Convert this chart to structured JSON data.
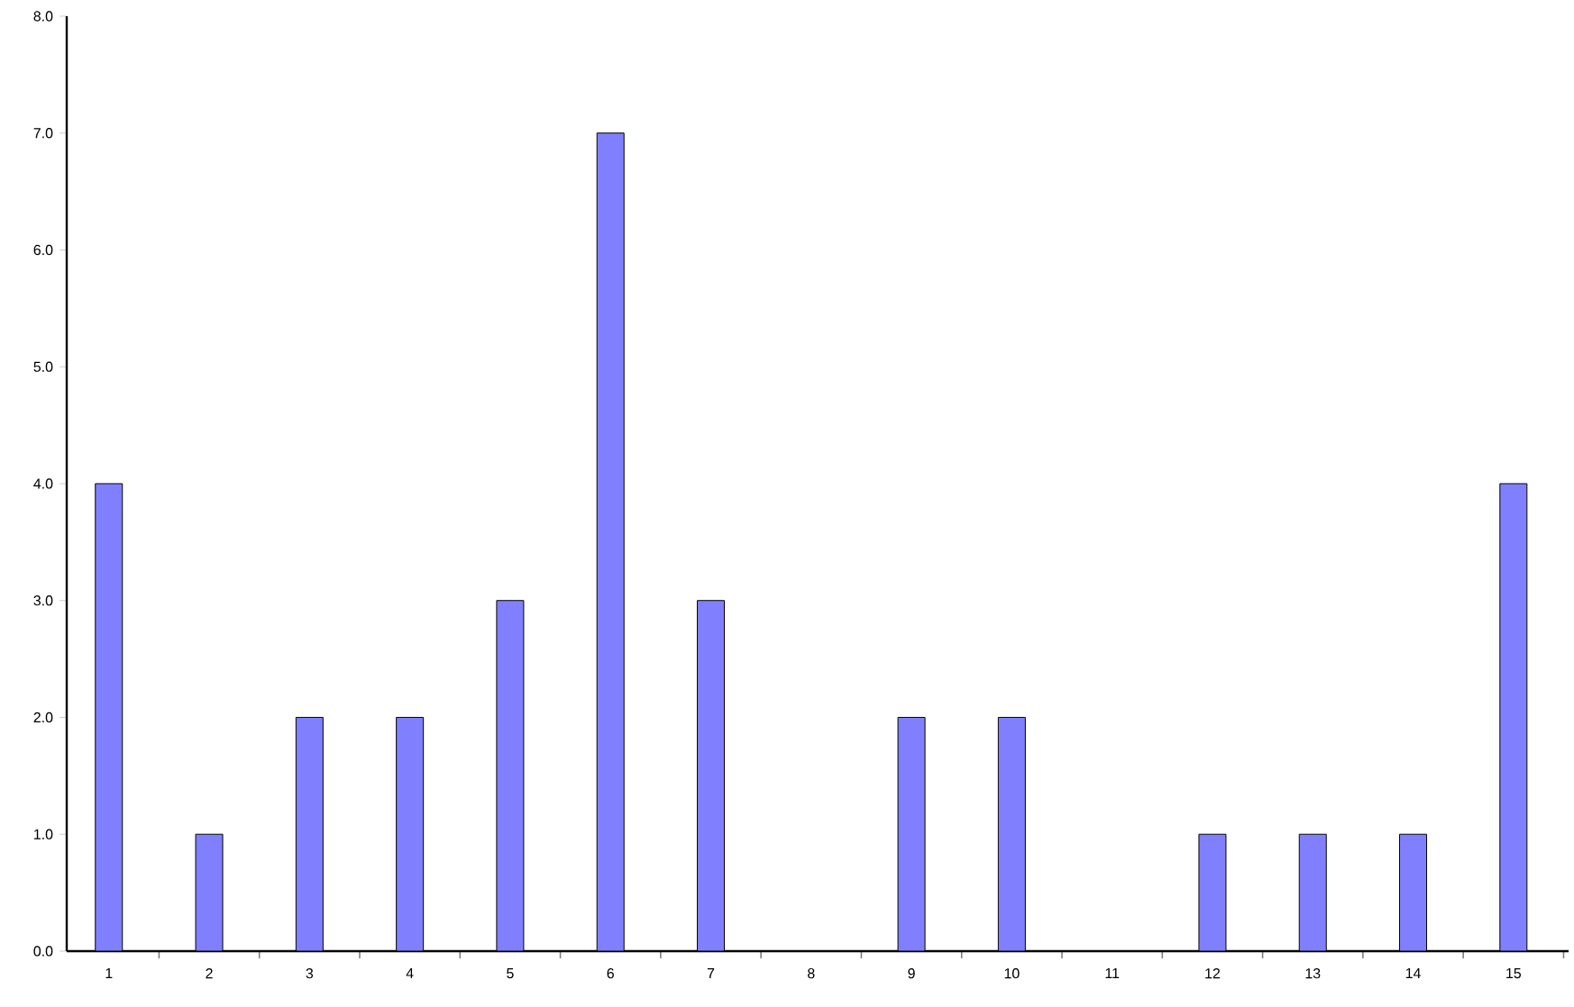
{
  "chart_data": {
    "type": "bar",
    "categories": [
      "1",
      "2",
      "3",
      "4",
      "5",
      "6",
      "7",
      "8",
      "9",
      "10",
      "11",
      "12",
      "13",
      "14",
      "15"
    ],
    "values": [
      4,
      1,
      2,
      2,
      3,
      7,
      3,
      0,
      2,
      2,
      0,
      1,
      1,
      1,
      4
    ],
    "color": "#8080ff",
    "ylim": [
      0,
      8
    ],
    "yticks": [
      {
        "value": 0,
        "label": "0.0"
      },
      {
        "value": 1,
        "label": "1.0"
      },
      {
        "value": 2,
        "label": "2.0"
      },
      {
        "value": 3,
        "label": "3.0"
      },
      {
        "value": 4,
        "label": "4.0"
      },
      {
        "value": 5,
        "label": "5.0"
      },
      {
        "value": 6,
        "label": "6.0"
      },
      {
        "value": 7,
        "label": "7.0"
      },
      {
        "value": 8,
        "label": "8.0"
      }
    ],
    "grid": false
  }
}
